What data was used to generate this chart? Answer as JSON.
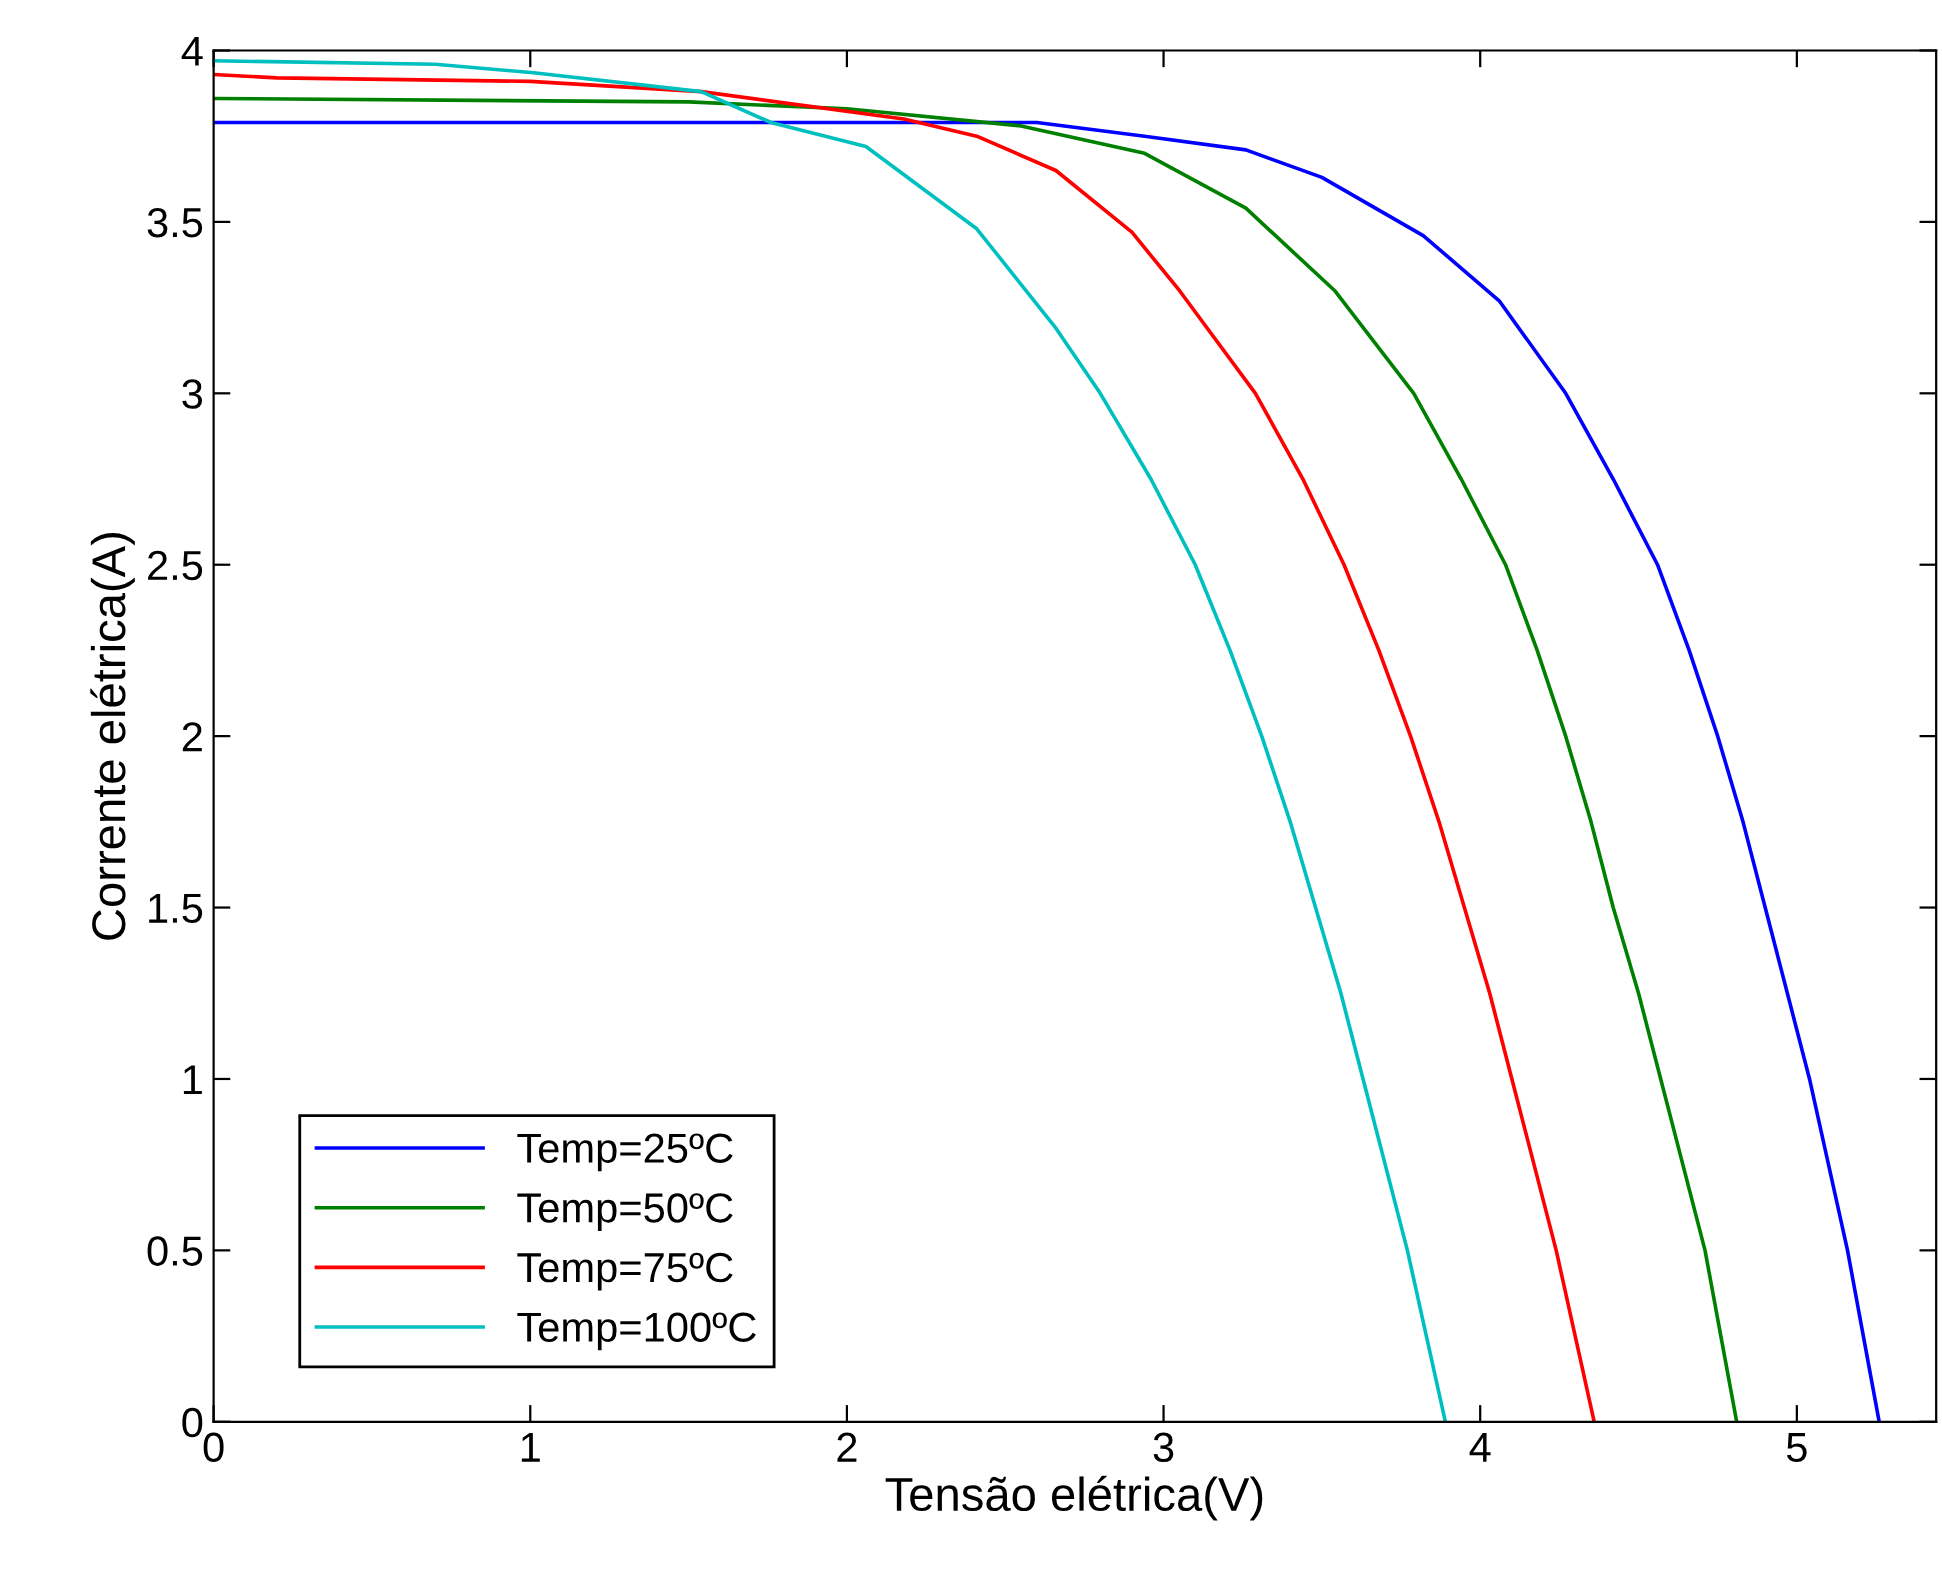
{
  "chart_data": {
    "type": "line",
    "xlabel": "Tensão elétrica(V)",
    "ylabel": "Corrente elétrica(A)",
    "xlim": [
      0,
      5.44
    ],
    "ylim": [
      0,
      4
    ],
    "xticks": [
      0,
      1,
      2,
      3,
      4,
      5
    ],
    "yticks": [
      0,
      0.5,
      1,
      1.5,
      2,
      2.5,
      3,
      3.5,
      4
    ],
    "grid": false,
    "legend": "bottom left",
    "marker": "none",
    "line_style": "solid",
    "series": [
      {
        "name": "Temp=25ºC",
        "color": "#0000ff",
        "x": [
          0,
          2.6,
          2.94,
          3.26,
          3.5,
          3.82,
          4.06,
          4.27,
          4.42,
          4.56,
          4.66,
          4.75,
          4.83,
          4.9,
          4.97,
          5.04,
          5.1,
          5.16,
          5.21,
          5.26
        ],
        "values": [
          3.79,
          3.79,
          3.75,
          3.71,
          3.63,
          3.46,
          3.27,
          3.0,
          2.75,
          2.5,
          2.25,
          2.0,
          1.75,
          1.5,
          1.25,
          1.0,
          0.75,
          0.5,
          0.25,
          0
        ]
      },
      {
        "name": "Temp=50ºC",
        "color": "#008000",
        "x": [
          0,
          1.5,
          2.0,
          2.55,
          2.94,
          3.26,
          3.54,
          3.79,
          3.94,
          4.08,
          4.18,
          4.27,
          4.35,
          4.42,
          4.5,
          4.57,
          4.64,
          4.71,
          4.76,
          4.81
        ],
        "values": [
          3.86,
          3.85,
          3.83,
          3.78,
          3.7,
          3.54,
          3.3,
          3.0,
          2.75,
          2.5,
          2.25,
          2.0,
          1.75,
          1.5,
          1.25,
          1.0,
          0.75,
          0.5,
          0.25,
          0
        ]
      },
      {
        "name": "Temp=75ºC",
        "color": "#ff0000",
        "x": [
          0,
          0.2,
          1.0,
          1.54,
          2.18,
          2.41,
          2.66,
          2.9,
          3.05,
          3.29,
          3.44,
          3.57,
          3.68,
          3.78,
          3.87,
          3.95,
          4.03,
          4.1,
          4.17,
          4.24,
          4.3,
          4.36
        ],
        "values": [
          3.93,
          3.92,
          3.91,
          3.88,
          3.8,
          3.75,
          3.65,
          3.47,
          3.3,
          3.0,
          2.75,
          2.5,
          2.25,
          2.0,
          1.75,
          1.5,
          1.25,
          1.0,
          0.75,
          0.5,
          0.25,
          0
        ]
      },
      {
        "name": "Temp=100ºC",
        "color": "#00bfbf",
        "x": [
          0,
          0.7,
          1.01,
          1.54,
          1.76,
          2.06,
          2.41,
          2.66,
          2.8,
          2.96,
          3.1,
          3.21,
          3.31,
          3.4,
          3.48,
          3.56,
          3.63,
          3.7,
          3.77,
          3.83,
          3.89
        ],
        "values": [
          3.97,
          3.96,
          3.935,
          3.88,
          3.79,
          3.72,
          3.48,
          3.19,
          3.0,
          2.75,
          2.5,
          2.25,
          2.0,
          1.75,
          1.5,
          1.25,
          1.0,
          0.75,
          0.5,
          0.25,
          0
        ]
      }
    ]
  }
}
